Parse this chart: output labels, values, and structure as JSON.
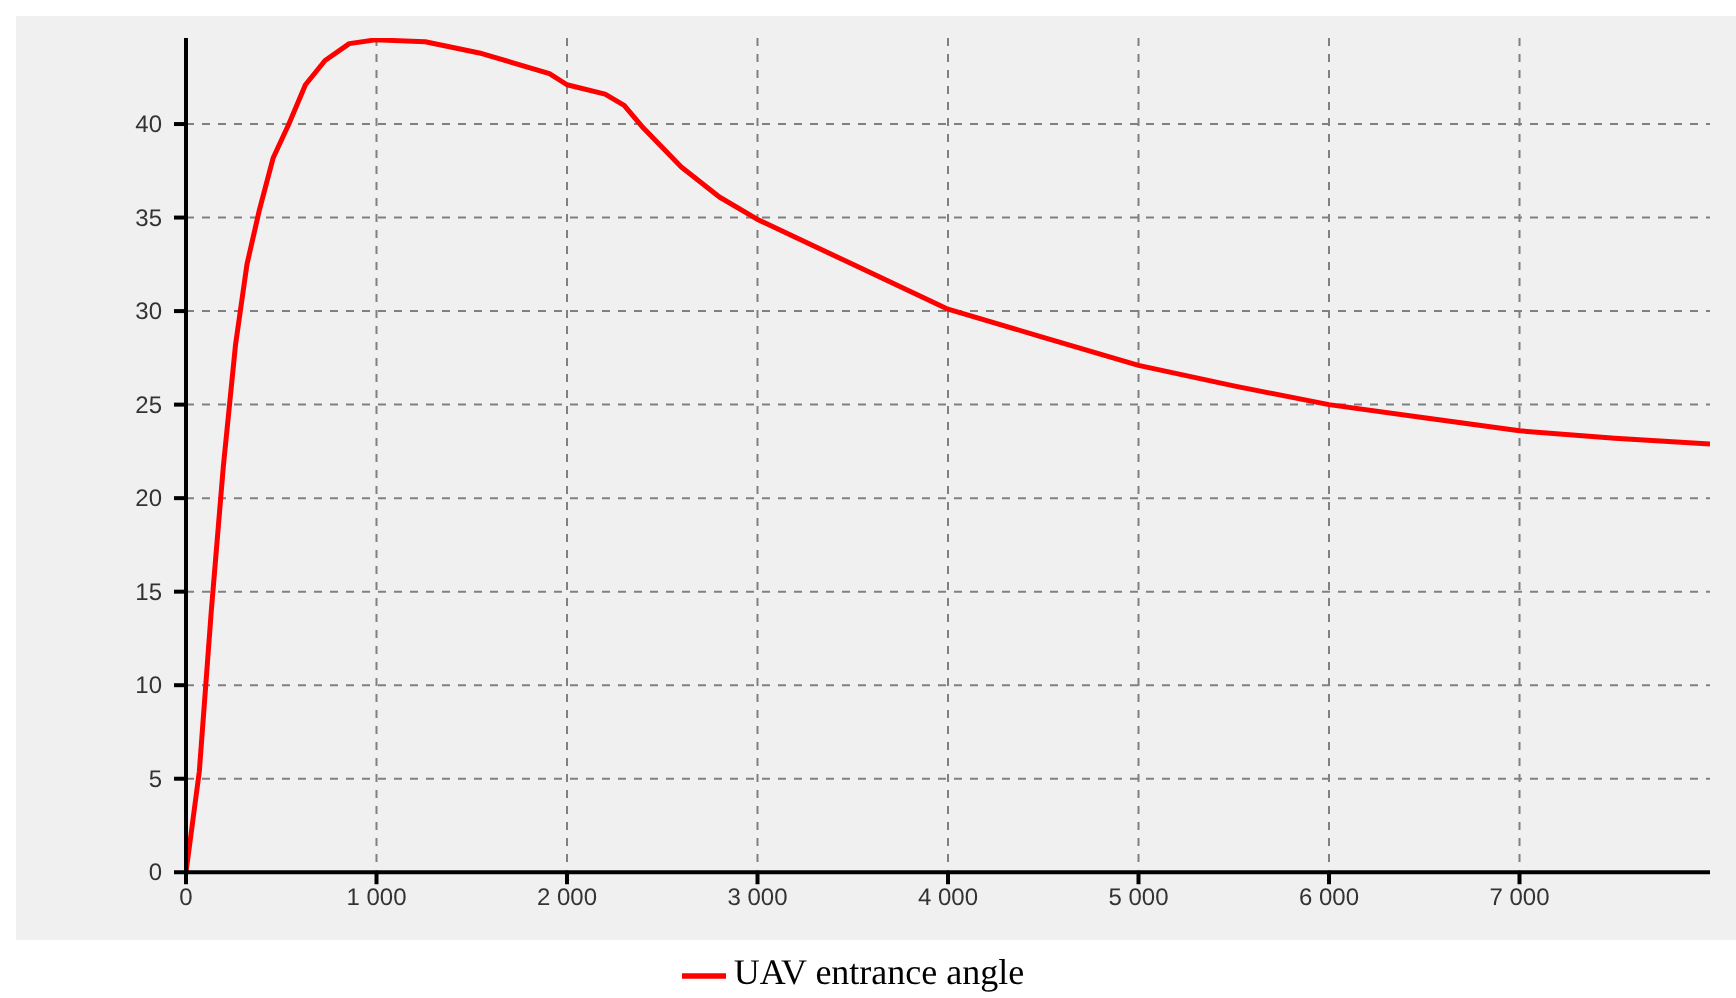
{
  "chart_data": {
    "type": "line",
    "x": [
      0,
      70,
      133,
      196,
      260,
      320,
      385,
      458,
      540,
      627,
      730,
      857,
      995,
      1256,
      1540,
      1908,
      2000,
      2200,
      2300,
      2400,
      2600,
      2800,
      3000,
      3500,
      4000,
      4500,
      5000,
      5500,
      6000,
      6500,
      7000,
      7500,
      8000
    ],
    "series": [
      {
        "name": "UAV entrance angle",
        "color": "#ff0000",
        "values": [
          0,
          5.4,
          14,
          21.7,
          28.2,
          32.5,
          35.4,
          38.2,
          40,
          42.1,
          43.4,
          44.3,
          44.5,
          44.4,
          43.8,
          42.7,
          42.1,
          41.6,
          41,
          39.8,
          37.7,
          36.1,
          34.9,
          32.5,
          30.1,
          28.6,
          27.1,
          26,
          25,
          24.3,
          23.6,
          23.2,
          22.9
        ]
      }
    ],
    "xlim": [
      0,
      8000
    ],
    "ylim": [
      0,
      44.6
    ],
    "xticks": [
      {
        "value": 0,
        "label": "0"
      },
      {
        "value": 1000,
        "label": "1 000"
      },
      {
        "value": 2000,
        "label": "2 000"
      },
      {
        "value": 3000,
        "label": "3 000"
      },
      {
        "value": 4000,
        "label": "4 000"
      },
      {
        "value": 5000,
        "label": "5 000"
      },
      {
        "value": 6000,
        "label": "6 000"
      },
      {
        "value": 7000,
        "label": "7 000"
      }
    ],
    "yticks": [
      0,
      5,
      10,
      15,
      20,
      25,
      30,
      35,
      40
    ],
    "grid": true,
    "legend": "bottom",
    "marker": "none",
    "line_style": "solid"
  }
}
